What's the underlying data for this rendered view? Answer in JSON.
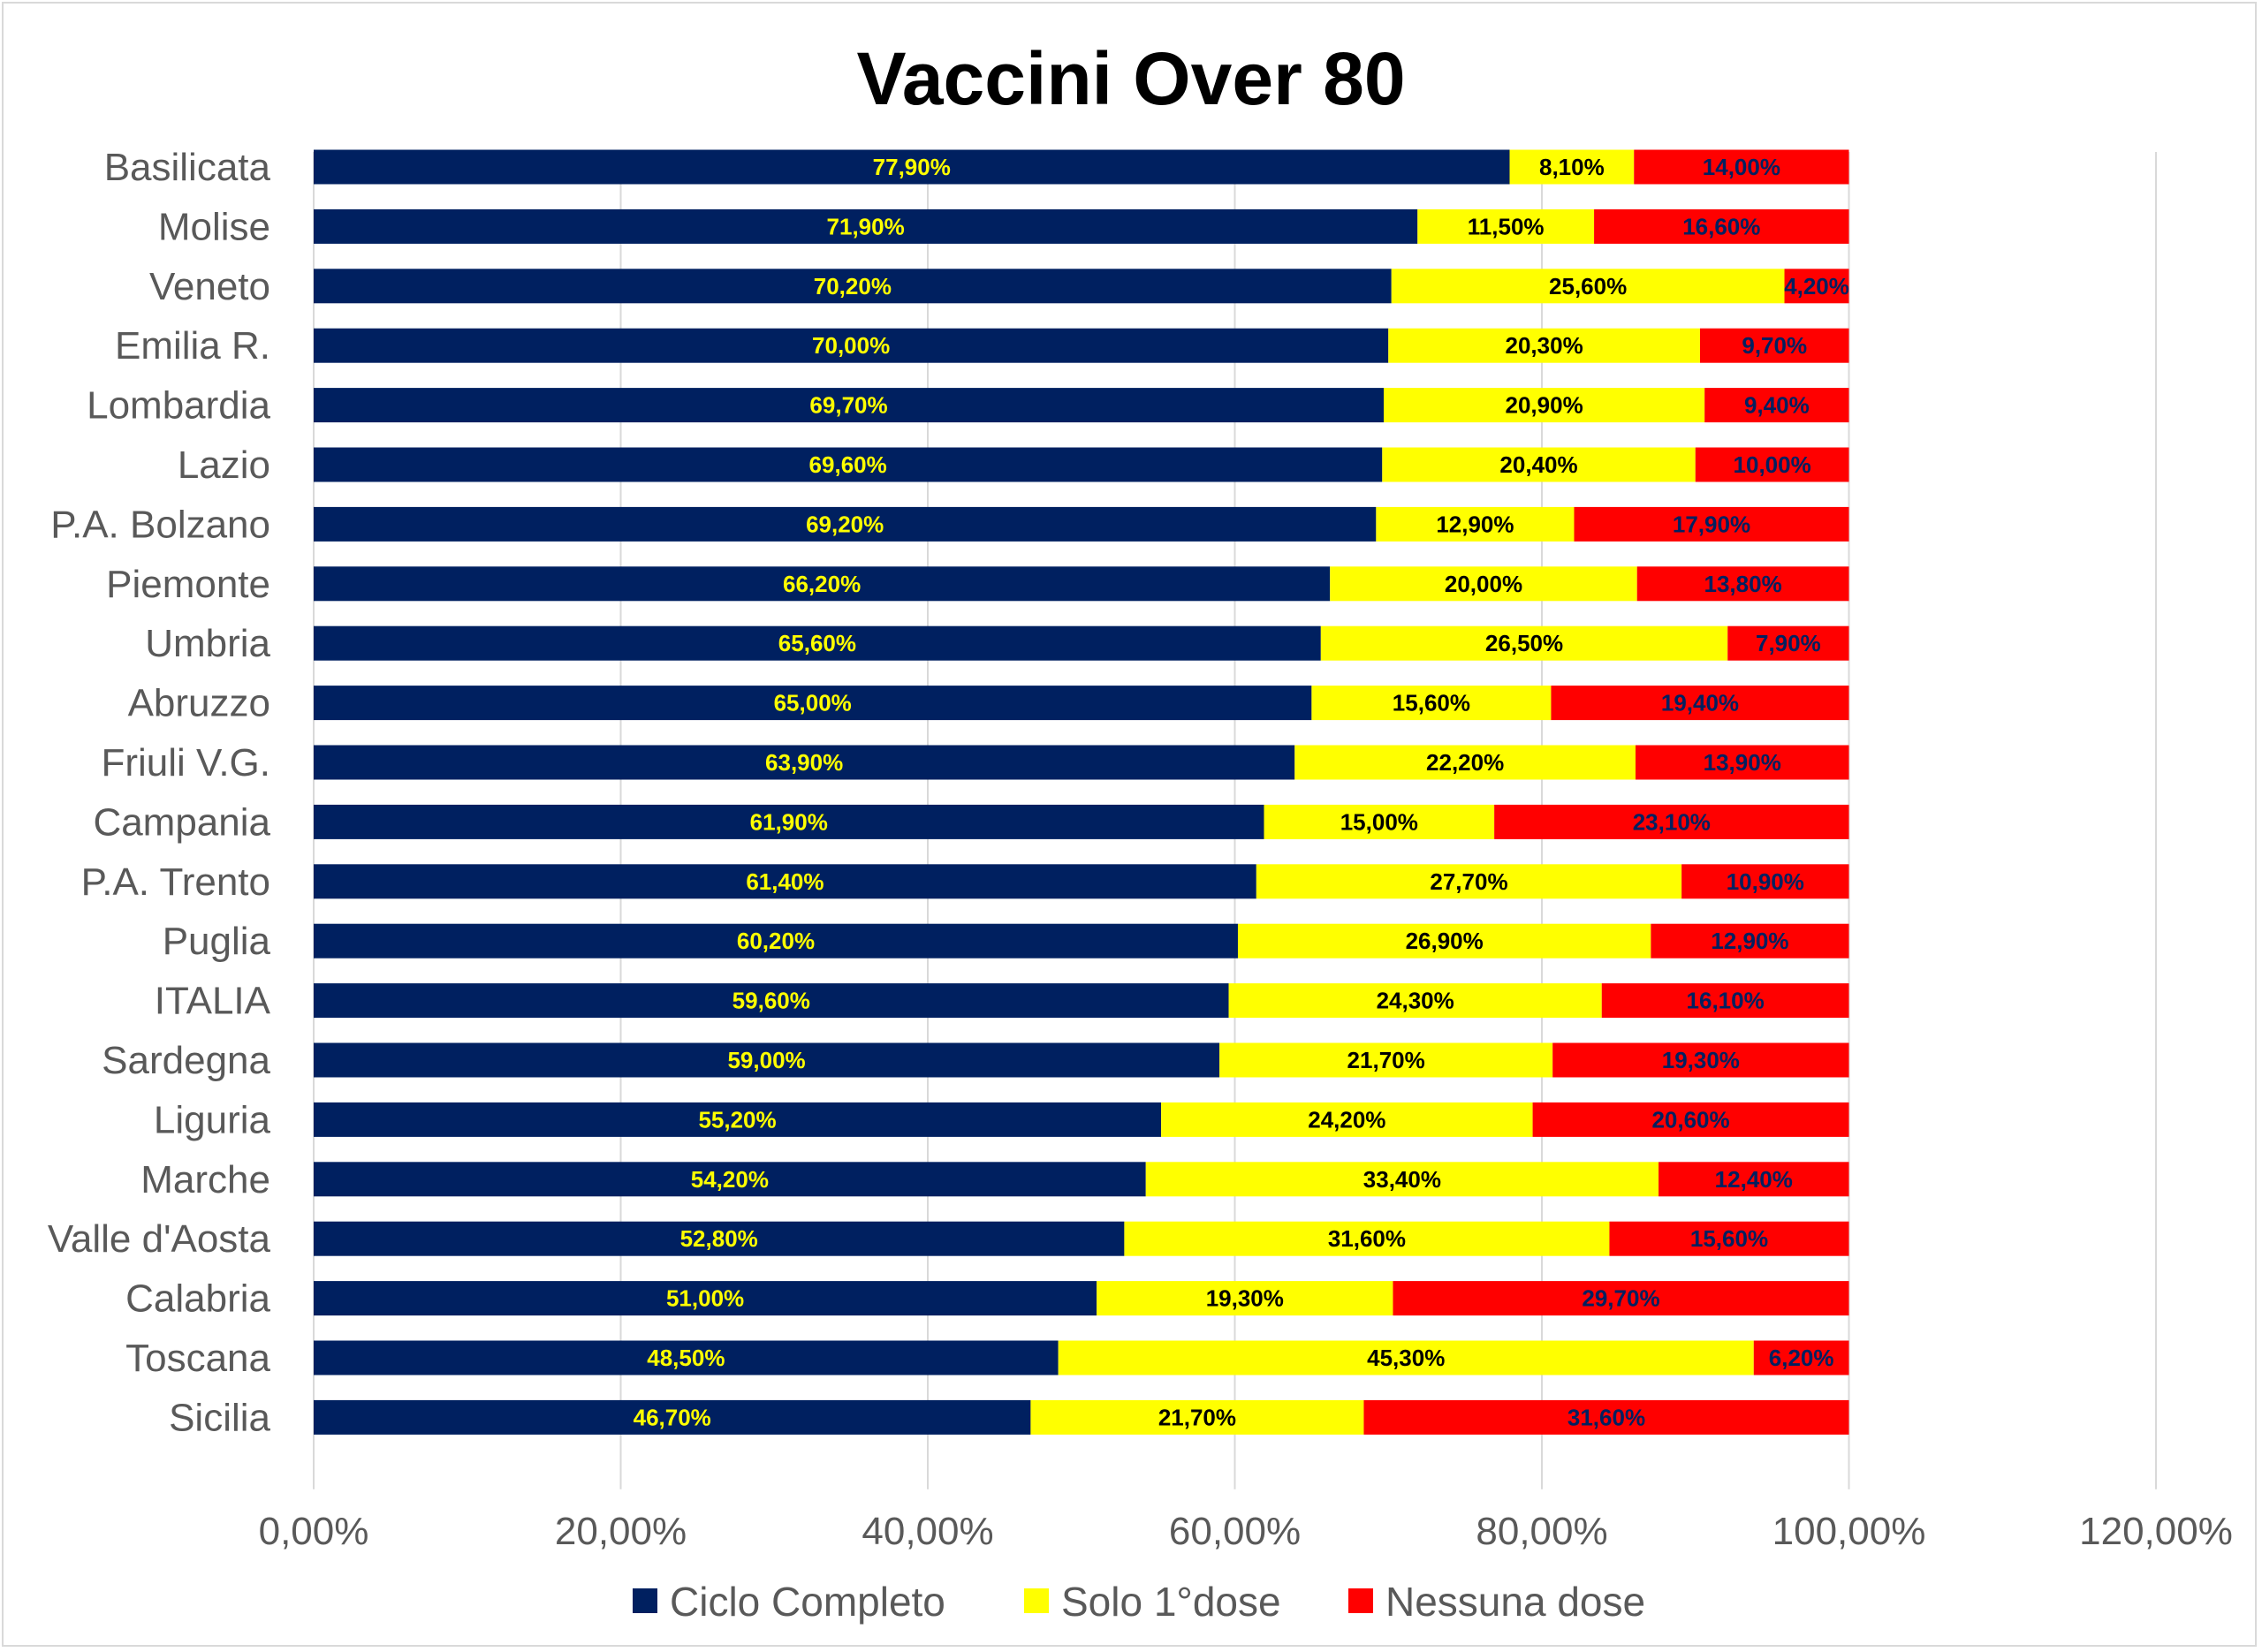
{
  "chart_data": {
    "type": "bar",
    "orientation": "horizontal",
    "stacked": true,
    "title": "Vaccini Over 80",
    "xlabel": "",
    "ylabel": "",
    "xlim": [
      0,
      120
    ],
    "x_ticks": [
      "0,00%",
      "20,00%",
      "40,00%",
      "60,00%",
      "80,00%",
      "100,00%",
      "120,00%"
    ],
    "x_tick_values": [
      0,
      20,
      40,
      60,
      80,
      100,
      120
    ],
    "grid": "vertical major gridlines",
    "legend_position": "bottom",
    "categories": [
      "Basilicata",
      "Molise",
      "Veneto",
      "Emilia R.",
      "Lombardia",
      "Lazio",
      "P.A. Bolzano",
      "Piemonte",
      "Umbria",
      "Abruzzo",
      "Friuli V.G.",
      "Campania",
      "P.A. Trento",
      "Puglia",
      "ITALIA",
      "Sardegna",
      "Liguria",
      "Marche",
      "Valle d'Aosta",
      "Calabria",
      "Toscana",
      "Sicilia"
    ],
    "series": [
      {
        "name": "Ciclo Completo",
        "color": "#002060",
        "label_color": "#ffff00",
        "values": [
          77.9,
          71.9,
          70.2,
          70.0,
          69.7,
          69.6,
          69.2,
          66.2,
          65.6,
          65.0,
          63.9,
          61.9,
          61.4,
          60.2,
          59.6,
          59.0,
          55.2,
          54.2,
          52.8,
          51.0,
          48.5,
          46.7
        ],
        "labels": [
          "77,90%",
          "71,90%",
          "70,20%",
          "70,00%",
          "69,70%",
          "69,60%",
          "69,20%",
          "66,20%",
          "65,60%",
          "65,00%",
          "63,90%",
          "61,90%",
          "61,40%",
          "60,20%",
          "59,60%",
          "59,00%",
          "55,20%",
          "54,20%",
          "52,80%",
          "51,00%",
          "48,50%",
          "46,70%"
        ]
      },
      {
        "name": "Solo 1°dose",
        "color": "#ffff00",
        "label_color": "#000000",
        "values": [
          8.1,
          11.5,
          25.6,
          20.3,
          20.9,
          20.4,
          12.9,
          20.0,
          26.5,
          15.6,
          22.2,
          15.0,
          27.7,
          26.9,
          24.3,
          21.7,
          24.2,
          33.4,
          31.6,
          19.3,
          45.3,
          21.7
        ],
        "labels": [
          "8,10%",
          "11,50%",
          "25,60%",
          "20,30%",
          "20,90%",
          "20,40%",
          "12,90%",
          "20,00%",
          "26,50%",
          "15,60%",
          "22,20%",
          "15,00%",
          "27,70%",
          "26,90%",
          "24,30%",
          "21,70%",
          "24,20%",
          "33,40%",
          "31,60%",
          "19,30%",
          "45,30%",
          "21,70%"
        ]
      },
      {
        "name": "Nessuna dose",
        "color": "#ff0000",
        "label_color": "#002060",
        "values": [
          14.0,
          16.6,
          4.2,
          9.7,
          9.4,
          10.0,
          17.9,
          13.8,
          7.9,
          19.4,
          13.9,
          23.1,
          10.9,
          12.9,
          16.1,
          19.3,
          20.6,
          12.4,
          15.6,
          29.7,
          6.2,
          31.6
        ],
        "labels": [
          "14,00%",
          "16,60%",
          "4,20%",
          "9,70%",
          "9,40%",
          "10,00%",
          "17,90%",
          "13,80%",
          "7,90%",
          "19,40%",
          "13,90%",
          "23,10%",
          "10,90%",
          "12,90%",
          "16,10%",
          "19,30%",
          "20,60%",
          "12,40%",
          "15,60%",
          "29,70%",
          "6,20%",
          "31,60%"
        ]
      }
    ]
  }
}
